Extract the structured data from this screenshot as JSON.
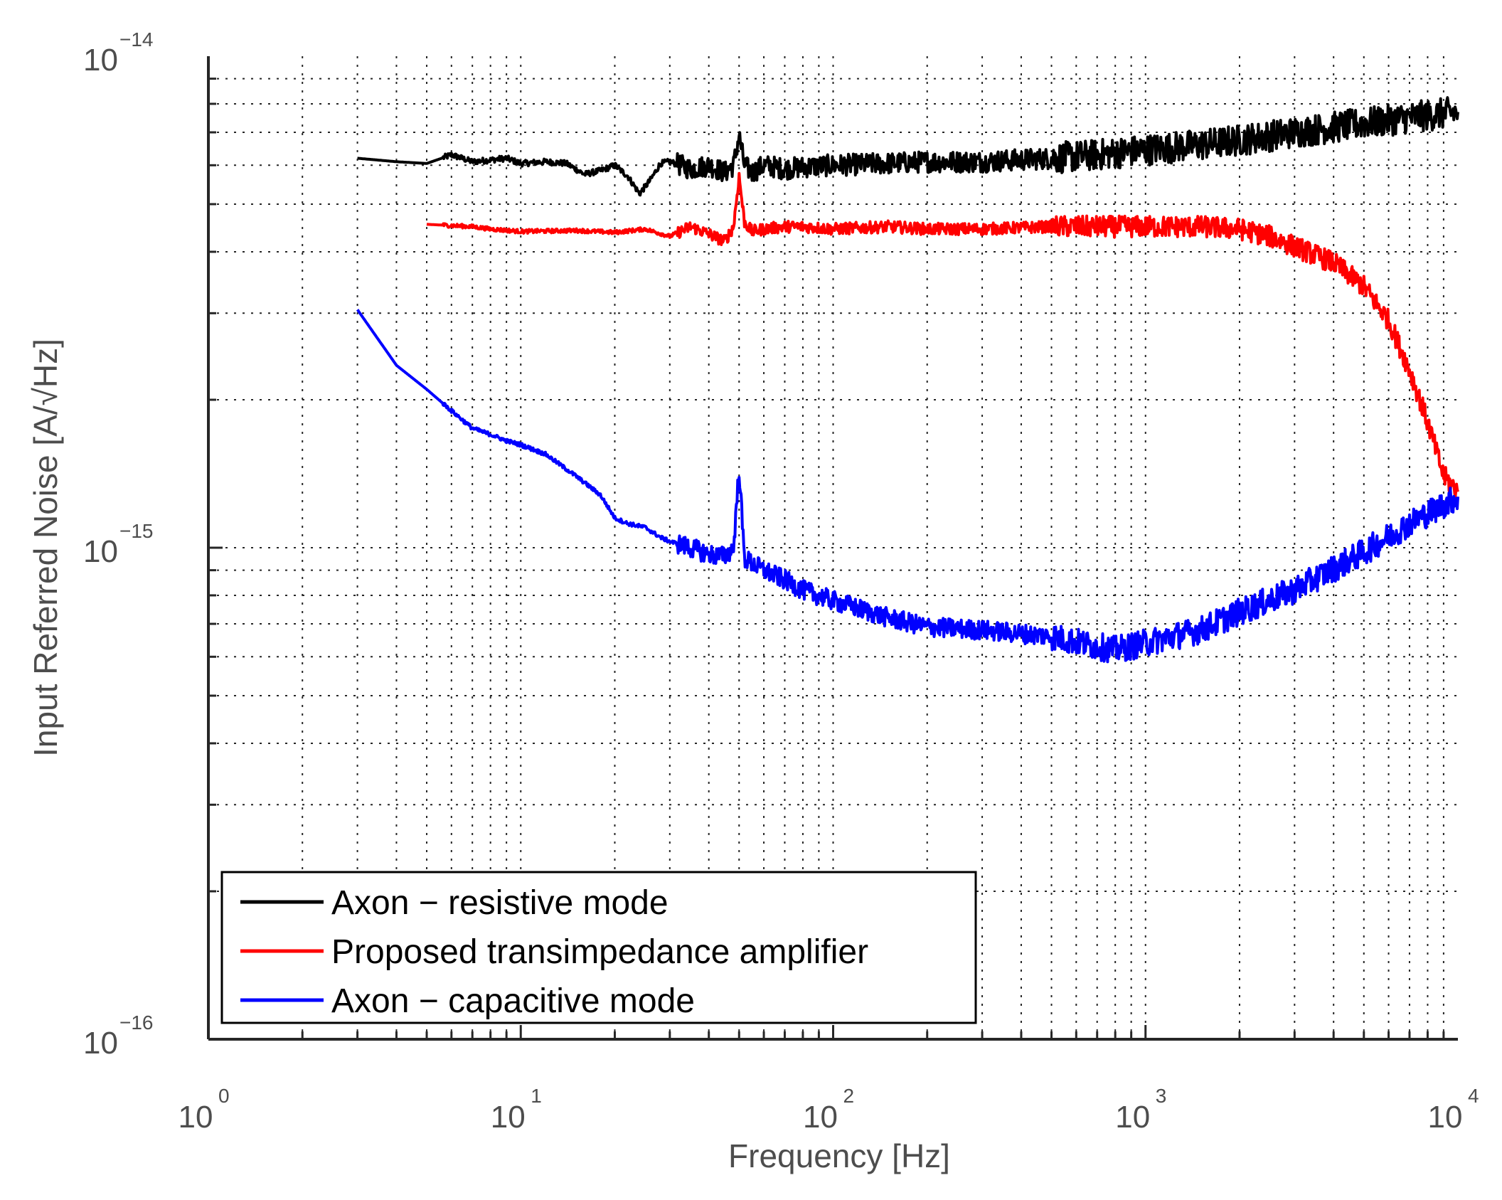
{
  "chart_data": {
    "type": "line",
    "title": "",
    "xscale": "log",
    "yscale": "log",
    "xlim": [
      1,
      10000
    ],
    "ylim": [
      1e-16,
      1e-14
    ],
    "xlabel": "Frequency [Hz]",
    "ylabel": "Input Referred Noise [A/√Hz]",
    "grid": true,
    "x_ticks": [
      {
        "value": 1,
        "base": "10",
        "exp": "0"
      },
      {
        "value": 10,
        "base": "10",
        "exp": "1"
      },
      {
        "value": 100,
        "base": "10",
        "exp": "2"
      },
      {
        "value": 1000,
        "base": "10",
        "exp": "3"
      },
      {
        "value": 10000,
        "base": "10",
        "exp": "4"
      }
    ],
    "y_ticks": [
      {
        "value": 1e-16,
        "base": "10",
        "exp": "−16"
      },
      {
        "value": 1e-15,
        "base": "10",
        "exp": "−15"
      },
      {
        "value": 1e-14,
        "base": "10",
        "exp": "−14"
      }
    ],
    "legend_position": "bottom-left",
    "series": [
      {
        "name": "Axon − resistive mode",
        "color": "#000000",
        "x": [
          3,
          4,
          5,
          6,
          7,
          8,
          9,
          10,
          12,
          14,
          16,
          18,
          20,
          22,
          24,
          26,
          28,
          30,
          35,
          40,
          45,
          48,
          50,
          52,
          55,
          60,
          70,
          80,
          100,
          150,
          200,
          300,
          500,
          700,
          1000,
          1500,
          2000,
          3000,
          5000,
          7000,
          10000
        ],
        "y": [
          6.2e-15,
          6.1e-15,
          6.05e-15,
          6.3e-15,
          6.1e-15,
          6.15e-15,
          6.2e-15,
          6.05e-15,
          6.1e-15,
          6.05e-15,
          5.75e-15,
          5.85e-15,
          6e-15,
          5.7e-15,
          5.25e-15,
          5.6e-15,
          6.05e-15,
          6.1e-15,
          5.9e-15,
          6e-15,
          5.8e-15,
          6e-15,
          6.9e-15,
          6e-15,
          5.8e-15,
          6e-15,
          5.9e-15,
          5.95e-15,
          6e-15,
          6.05e-15,
          6.1e-15,
          6.1e-15,
          6.2e-15,
          6.3e-15,
          6.45e-15,
          6.6e-15,
          6.75e-15,
          7e-15,
          7.3e-15,
          7.5e-15,
          7.7e-15
        ]
      },
      {
        "name": "Proposed transimpedance amplifier",
        "color": "#ff0000",
        "x": [
          5,
          7,
          8,
          10,
          15,
          20,
          25,
          30,
          35,
          40,
          45,
          48,
          50,
          52,
          55,
          60,
          70,
          80,
          100,
          150,
          200,
          300,
          500,
          700,
          1000,
          1500,
          2000,
          2500,
          3000,
          4000,
          5000,
          6000,
          7000,
          8000,
          9000,
          10000
        ],
        "y": [
          4.55e-15,
          4.5e-15,
          4.45e-15,
          4.4e-15,
          4.42e-15,
          4.38e-15,
          4.45e-15,
          4.3e-15,
          4.5e-15,
          4.35e-15,
          4.2e-15,
          4.5e-15,
          5.7e-15,
          4.6e-15,
          4.4e-15,
          4.45e-15,
          4.5e-15,
          4.5e-15,
          4.45e-15,
          4.5e-15,
          4.45e-15,
          4.45e-15,
          4.5e-15,
          4.5e-15,
          4.5e-15,
          4.5e-15,
          4.45e-15,
          4.3e-15,
          4.1e-15,
          3.8e-15,
          3.4e-15,
          2.9e-15,
          2.3e-15,
          1.8e-15,
          1.4e-15,
          1.3e-15
        ]
      },
      {
        "name": "Axon − capacitive mode",
        "color": "#0000ff",
        "x": [
          3,
          4,
          5,
          6,
          7,
          8,
          9,
          10,
          12,
          15,
          18,
          20,
          22,
          25,
          28,
          30,
          35,
          40,
          45,
          48,
          50,
          52,
          55,
          60,
          70,
          80,
          100,
          150,
          200,
          300,
          500,
          700,
          800,
          1000,
          1500,
          2000,
          3000,
          5000,
          7000,
          10000
        ],
        "y": [
          3.05e-15,
          2.35e-15,
          2.1e-15,
          1.9e-15,
          1.75e-15,
          1.7e-15,
          1.65e-15,
          1.62e-15,
          1.55e-15,
          1.4e-15,
          1.28e-15,
          1.15e-15,
          1.12e-15,
          1.1e-15,
          1.05e-15,
          1.03e-15,
          1e-15,
          9.7e-16,
          9.6e-16,
          1e-15,
          1.45e-15,
          9.5e-16,
          9.3e-16,
          9e-16,
          8.6e-16,
          8.2e-16,
          7.8e-16,
          7.2e-16,
          6.9e-16,
          6.8e-16,
          6.6e-16,
          6.3e-16,
          6.2e-16,
          6.4e-16,
          6.8e-16,
          7.4e-16,
          8.2e-16,
          9.8e-16,
          1.12e-15,
          1.27e-15
        ]
      }
    ]
  }
}
